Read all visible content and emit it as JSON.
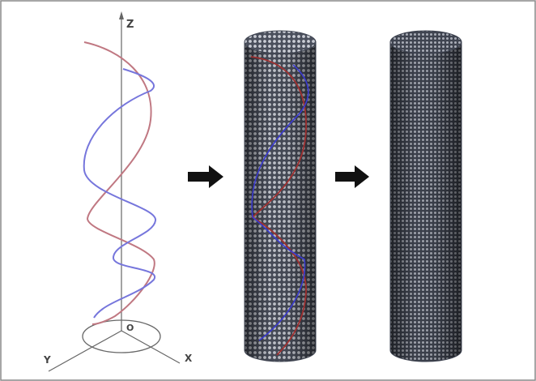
{
  "axes": {
    "z_label": "Z",
    "y_label": "Y",
    "x_label": "X",
    "origin_label": "O"
  },
  "colors": {
    "helix_red": "#c07882",
    "helix_blue": "#7676dc",
    "helix_red_on_tube": "#a03030",
    "helix_blue_on_tube": "#3a3ad0",
    "tube_shade": "#7d8290",
    "tube_dark": "#3e4350",
    "arrow": "#111111",
    "frame_border": "#888888",
    "axis_line": "#666666"
  },
  "panels": [
    "double-helix-axes",
    "helix-wrapped-nanotube",
    "plain-nanotube"
  ]
}
